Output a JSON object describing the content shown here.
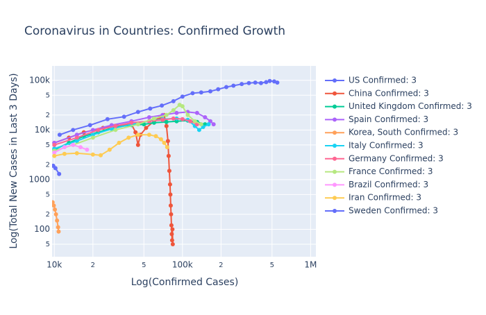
{
  "chart_data": {
    "type": "line",
    "title": "Coronavirus in Countries: Confirmed Growth",
    "x_label": "Log(Confirmed Cases)",
    "y_label": "Log(Total New Cases in Last 3 Days)",
    "log_x": true,
    "log_y": true,
    "grid": true,
    "legend": "right",
    "xlim": [
      9600,
      1100000
    ],
    "ylim": [
      28,
      195000
    ],
    "xticks": [
      {
        "value": 10000,
        "label": "10k"
      },
      {
        "value": 20000,
        "label": "2"
      },
      {
        "value": 50000,
        "label": "5"
      },
      {
        "value": 100000,
        "label": "100k"
      },
      {
        "value": 200000,
        "label": "2"
      },
      {
        "value": 500000,
        "label": "5"
      },
      {
        "value": 1000000,
        "label": "1M"
      }
    ],
    "yticks": [
      {
        "value": 50,
        "label": "5"
      },
      100,
      {
        "value": 200,
        "label": "2"
      },
      {
        "value": 500,
        "label": "5"
      },
      1000,
      {
        "value": 2000,
        "label": "2"
      },
      {
        "value": 5000,
        "label": "5"
      },
      {
        "value": 10000,
        "label": "10k"
      },
      {
        "value": 20000,
        "label": "2"
      },
      {
        "value": 50000,
        "label": "5"
      },
      {
        "value": 100000,
        "label": "100k"
      }
    ],
    "series": [
      {
        "name": "US Confirmed: 3",
        "color": "#636efa",
        "x": [
          11000,
          14000,
          19000,
          26000,
          35000,
          45000,
          56000,
          69000,
          85000,
          100000,
          120000,
          140000,
          165000,
          190000,
          220000,
          250000,
          290000,
          330000,
          370000,
          410000,
          450000,
          480000,
          520000,
          550000
        ],
        "values": [
          8000,
          10000,
          12500,
          16500,
          18500,
          23000,
          27000,
          31000,
          38000,
          47000,
          55000,
          57000,
          60000,
          66000,
          73000,
          78000,
          84000,
          88000,
          90000,
          88000,
          92000,
          97000,
          95000,
          90000
        ]
      },
      {
        "name": "China Confirmed: 3",
        "color": "#EF553B",
        "x": [
          10000,
          13000,
          17000,
          24000,
          31000,
          40000,
          43000,
          45000,
          47000,
          52000,
          60000,
          67000,
          72000,
          75000,
          77000,
          78000,
          79000,
          80000,
          80500,
          81000,
          81500,
          82000,
          82500,
          83000,
          83500,
          84000
        ],
        "values": [
          5500,
          7000,
          9000,
          11000,
          12000,
          13000,
          9000,
          5000,
          8000,
          11000,
          15000,
          18000,
          20000,
          12000,
          6000,
          3000,
          1500,
          800,
          500,
          300,
          200,
          120,
          80,
          60,
          100,
          50
        ]
      },
      {
        "name": "United Kingdom Confirmed: 3",
        "color": "#00cc96",
        "x": [
          10000,
          13000,
          17000,
          22000,
          30000,
          40000,
          50000,
          60000,
          75000,
          90000,
          110000,
          130000,
          150000
        ],
        "values": [
          4000,
          5500,
          7500,
          9000,
          11500,
          12500,
          13000,
          14000,
          14500,
          15000,
          15500,
          14500,
          13000
        ]
      },
      {
        "name": "Spain Confirmed: 3",
        "color": "#ab63fa",
        "x": [
          10000,
          15000,
          20000,
          28000,
          40000,
          55000,
          70000,
          90000,
          110000,
          130000,
          150000,
          165000,
          175000
        ],
        "values": [
          5500,
          8000,
          10000,
          12500,
          15000,
          18000,
          20000,
          22000,
          23000,
          22000,
          18000,
          15000,
          13000
        ]
      },
      {
        "name": "Korea, South Confirmed: 3",
        "color": "#FFA15A",
        "x": [
          9700,
          9900,
          10100,
          10300,
          10500,
          10700,
          10800
        ],
        "values": [
          350,
          300,
          250,
          200,
          150,
          110,
          90
        ]
      },
      {
        "name": "Italy Confirmed: 3",
        "color": "#19d3f3",
        "x": [
          10000,
          15000,
          20000,
          28000,
          40000,
          55000,
          70000,
          90000,
          110000,
          125000,
          135000,
          145000,
          160000
        ],
        "values": [
          4200,
          6000,
          8000,
          10500,
          13000,
          15000,
          16500,
          17000,
          16000,
          12000,
          10000,
          11500,
          13000
        ]
      },
      {
        "name": "Germany Confirmed: 3",
        "color": "#FF6692",
        "x": [
          10000,
          15000,
          22000,
          30000,
          40000,
          55000,
          70000,
          85000,
          100000,
          115000,
          130000
        ],
        "values": [
          5000,
          7000,
          10000,
          12000,
          14000,
          15000,
          16000,
          17000,
          16500,
          15000,
          13000
        ]
      },
      {
        "name": "France Confirmed: 3",
        "color": "#B6E880",
        "x": [
          10000,
          14000,
          20000,
          30000,
          45000,
          60000,
          75000,
          85000,
          95000,
          100000,
          110000,
          125000,
          140000
        ],
        "values": [
          3800,
          5000,
          7000,
          10000,
          13000,
          17000,
          20000,
          25000,
          32000,
          30000,
          20000,
          15000,
          13000
        ]
      },
      {
        "name": "Brazil Confirmed: 3",
        "color": "#FF97FF",
        "x": [
          10000,
          12000,
          14000,
          16000,
          18000
        ],
        "values": [
          3500,
          4500,
          5000,
          4500,
          4000
        ]
      },
      {
        "name": "Iran Confirmed: 3",
        "color": "#FECB52",
        "x": [
          10000,
          12000,
          15000,
          20000,
          23000,
          27000,
          32000,
          38000,
          45000,
          55000,
          62000,
          68000,
          72000,
          76000
        ],
        "values": [
          3000,
          3300,
          3400,
          3200,
          3100,
          4000,
          5500,
          7000,
          8000,
          8000,
          7500,
          6500,
          5500,
          4500
        ]
      },
      {
        "name": "Sweden Confirmed: 3",
        "color": "#636efa",
        "x": [
          9800,
          10200,
          10900
        ],
        "values": [
          1900,
          1700,
          1300
        ]
      }
    ]
  }
}
